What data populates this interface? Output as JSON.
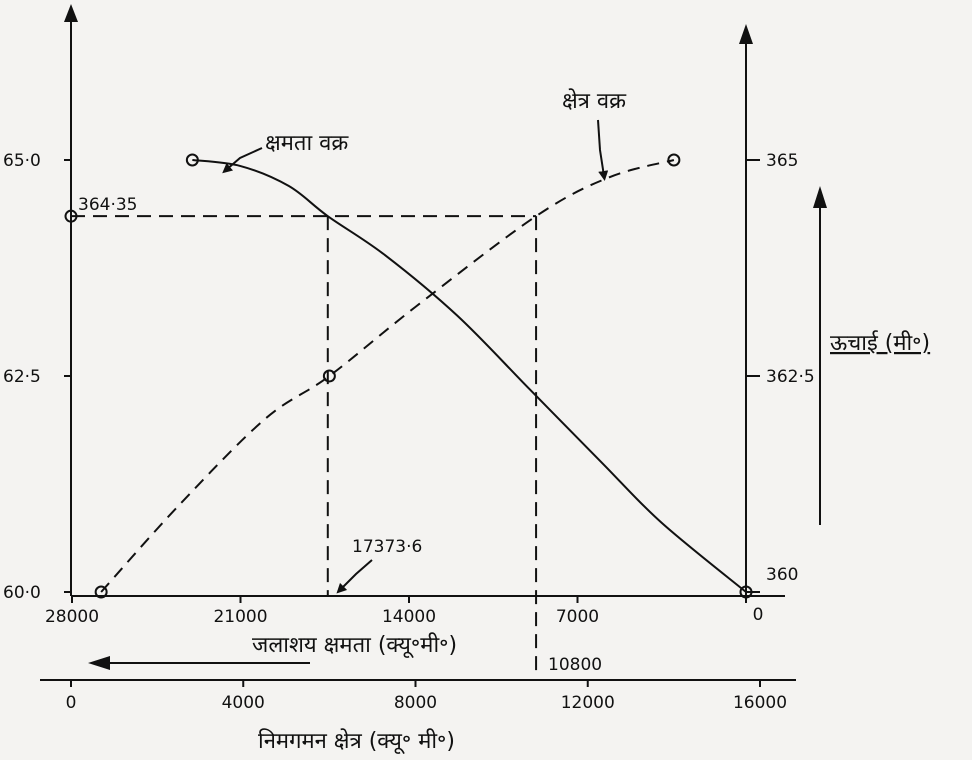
{
  "chart_data": {
    "type": "line",
    "title": "",
    "left_axis": {
      "ticks": [
        {
          "value": 65.0,
          "label": "65·0"
        },
        {
          "value": 62.5,
          "label": "62·5"
        },
        {
          "value": 60.0,
          "label": "60·0"
        }
      ],
      "range": [
        60.0,
        65.0
      ]
    },
    "right_axis": {
      "label": "ऊचाई (मी॰)",
      "ticks": [
        {
          "value": 365,
          "label": "365"
        },
        {
          "value": 362.5,
          "label": "362·5"
        },
        {
          "value": 360,
          "label": "360"
        }
      ],
      "range": [
        360,
        365
      ]
    },
    "capacity_axis": {
      "label": "जलाशय क्षमता (क्यू॰मी॰)",
      "ticks": [
        {
          "value": 28000,
          "label": "28000"
        },
        {
          "value": 21000,
          "label": "21000"
        },
        {
          "value": 14000,
          "label": "14000"
        },
        {
          "value": 7000,
          "label": "7000"
        },
        {
          "value": 0,
          "label": "0"
        }
      ],
      "range": [
        28000,
        0
      ],
      "direction": "decreasing left to right"
    },
    "area_axis": {
      "label": "निमगमन क्षेत्र (क्यू॰ मी॰)",
      "ticks": [
        {
          "value": 0,
          "label": "0"
        },
        {
          "value": 4000,
          "label": "4000"
        },
        {
          "value": 8000,
          "label": "8000"
        },
        {
          "value": 12000,
          "label": "12000"
        },
        {
          "value": 16000,
          "label": "16000"
        }
      ],
      "range": [
        0,
        16000
      ]
    },
    "series": [
      {
        "name": "क्षमता वक्र",
        "style": "solid",
        "x_axis": "capacity",
        "points": [
          {
            "x": 23000,
            "y": 365.0
          },
          {
            "x": 21000,
            "y": 364.93
          },
          {
            "x": 19000,
            "y": 364.7
          },
          {
            "x": 17373.6,
            "y": 364.35
          },
          {
            "x": 15000,
            "y": 363.9
          },
          {
            "x": 12000,
            "y": 363.2
          },
          {
            "x": 9000,
            "y": 362.35
          },
          {
            "x": 6000,
            "y": 361.5
          },
          {
            "x": 3500,
            "y": 360.8
          },
          {
            "x": 0,
            "y": 360.0
          }
        ],
        "markers": [
          {
            "x": 23000,
            "y": 365.0
          },
          {
            "x": 0,
            "y": 360.0
          }
        ]
      },
      {
        "name": "क्षेत्र वक्र",
        "style": "dashed",
        "x_axis": "area",
        "points": [
          {
            "x": 700,
            "y": 360.0
          },
          {
            "x": 2500,
            "y": 361.0
          },
          {
            "x": 4500,
            "y": 362.0
          },
          {
            "x": 6000,
            "y": 362.5
          },
          {
            "x": 8000,
            "y": 363.3
          },
          {
            "x": 10800,
            "y": 364.35
          },
          {
            "x": 12500,
            "y": 364.8
          },
          {
            "x": 14000,
            "y": 365.0
          }
        ],
        "markers": [
          {
            "x": 700,
            "y": 360.0
          },
          {
            "x": 6000,
            "y": 362.5
          },
          {
            "x": 14000,
            "y": 365.0
          }
        ]
      }
    ],
    "annotations": [
      {
        "text": "364·35",
        "y": 364.35
      },
      {
        "text": "17373·6",
        "capacity": 17373.6
      },
      {
        "text": "10800",
        "area": 10800
      }
    ],
    "grid": false
  }
}
